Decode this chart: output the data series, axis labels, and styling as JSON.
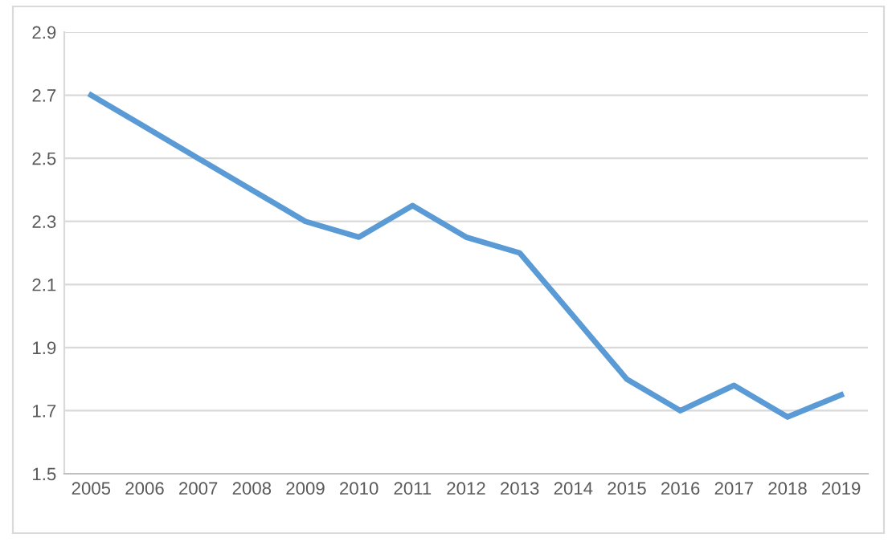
{
  "chart_data": {
    "type": "line",
    "categories": [
      "2005",
      "2006",
      "2007",
      "2008",
      "2009",
      "2010",
      "2011",
      "2012",
      "2013",
      "2014",
      "2015",
      "2016",
      "2017",
      "2018",
      "2019"
    ],
    "series": [
      {
        "color": "#5b9bd5",
        "values": [
          2.7,
          2.6,
          2.5,
          2.4,
          2.3,
          2.25,
          2.35,
          2.25,
          2.2,
          2.0,
          1.8,
          1.7,
          1.78,
          1.68,
          1.75
        ]
      }
    ],
    "ylim": [
      1.5,
      2.9
    ],
    "yticks": [
      1.5,
      1.7,
      1.9,
      2.1,
      2.3,
      2.5,
      2.7,
      2.9
    ],
    "grid": "y",
    "marker": "none",
    "line_style": "solid"
  }
}
